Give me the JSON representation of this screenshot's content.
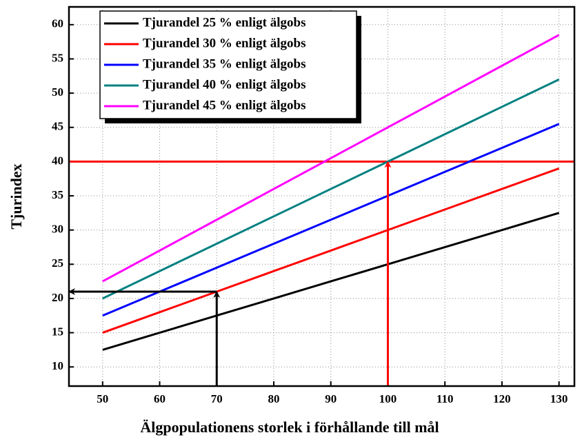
{
  "chart_data": {
    "type": "line",
    "x_label": "Älgpopulationens storlek i förhållande till mål",
    "y_label": "Tjurindex",
    "x": [
      50,
      60,
      70,
      80,
      90,
      100,
      110,
      120,
      130
    ],
    "series": [
      {
        "name": "Tjurandel 25 % enligt älgobs",
        "color": "#000000",
        "values": [
          12.5,
          15,
          17.5,
          20,
          22.5,
          25,
          27.5,
          30,
          32.5
        ]
      },
      {
        "name": "Tjurandel 30 % enligt älgobs",
        "color": "#ff0000",
        "values": [
          15,
          18,
          21,
          24,
          27,
          30,
          33,
          36,
          39
        ]
      },
      {
        "name": "Tjurandel 35 % enligt älgobs",
        "color": "#0000ff",
        "values": [
          17.5,
          21,
          24.5,
          28,
          31.5,
          35,
          38.5,
          42,
          45.5
        ]
      },
      {
        "name": "Tjurandel 40 % enligt älgobs",
        "color": "#008080",
        "values": [
          20,
          24,
          28,
          32,
          36,
          40,
          44,
          48,
          52
        ]
      },
      {
        "name": "Tjurandel 45 % enligt älgobs",
        "color": "#ff00ff",
        "values": [
          22.5,
          27,
          31.5,
          36,
          40.5,
          45,
          49.5,
          54,
          58.5
        ]
      }
    ],
    "xlim": [
      44.1,
      132.7
    ],
    "ylim": [
      7.2,
      62.6
    ],
    "xticks": [
      50,
      60,
      70,
      80,
      90,
      100,
      110,
      120,
      130
    ],
    "yticks": [
      10,
      15,
      20,
      25,
      30,
      35,
      40,
      45,
      50,
      55,
      60
    ],
    "grid": true,
    "hline": {
      "y": 40,
      "color": "#ff0000"
    },
    "arrows": [
      {
        "x": 100,
        "y": 40,
        "color": "#ff0000",
        "to_y_axis": false
      },
      {
        "x": 70,
        "y": 21,
        "color": "#000000",
        "to_y_axis": true
      }
    ],
    "legend": "top-left"
  }
}
